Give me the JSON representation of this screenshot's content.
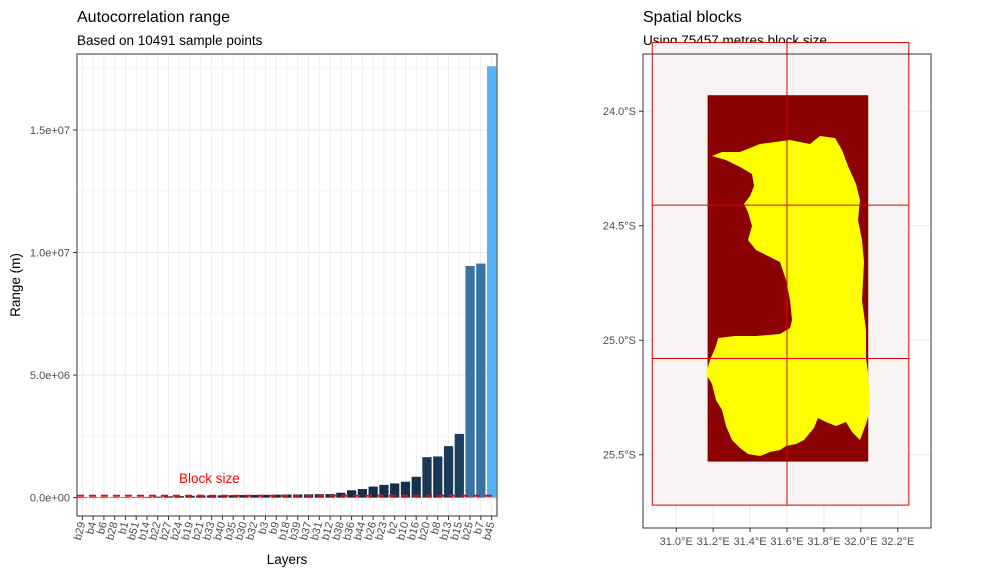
{
  "chart_data": [
    {
      "type": "bar",
      "title": "Autocorrelation range",
      "subtitle": "Based on 10491 sample points",
      "xlabel": "Layers",
      "ylabel": "Range (m)",
      "ylim": [
        -750000,
        18100000
      ],
      "yticks": [
        0,
        5000000,
        10000000,
        15000000
      ],
      "ytick_labels": [
        "0.0e+00",
        "5.0e+06",
        "1.0e+07",
        "1.5e+07"
      ],
      "grid": true,
      "categories": [
        "b29",
        "b4",
        "b6",
        "b28",
        "b1",
        "b51",
        "b14",
        "b22",
        "b27",
        "b24",
        "b19",
        "b21",
        "b33",
        "b40",
        "b35",
        "b30",
        "b32",
        "b3",
        "b9",
        "b18",
        "b39",
        "b37",
        "b31",
        "b12",
        "b38",
        "b36",
        "b44",
        "b26",
        "b23",
        "b2",
        "b10",
        "b16",
        "b20",
        "b8",
        "b13",
        "b15",
        "b25",
        "b7",
        "b45"
      ],
      "values": [
        5000,
        8000,
        10000,
        12000,
        15000,
        20000,
        30000,
        40000,
        50000,
        60000,
        75000,
        85000,
        90000,
        95000,
        100000,
        105000,
        110000,
        115000,
        120000,
        125000,
        130000,
        135000,
        140000,
        145000,
        200000,
        300000,
        350000,
        450000,
        520000,
        580000,
        650000,
        850000,
        1650000,
        1680000,
        2100000,
        2600000,
        9450000,
        9550000,
        17600000
      ],
      "value_scale_colors": [
        "#132B43",
        "#56B1F7"
      ],
      "reference_line": {
        "value": 75457,
        "label": "Block size",
        "color": "#ff0000",
        "style": "dashed"
      }
    },
    {
      "type": "map",
      "title": "Spatial blocks",
      "subtitle": "Using 75457 metres block size",
      "x_range": [
        30.82,
        32.38
      ],
      "y_range": [
        -25.82,
        -23.75
      ],
      "xticks": [
        31.0,
        31.2,
        31.4,
        31.6,
        31.8,
        32.0,
        32.2
      ],
      "xtick_labels": [
        "31.0°E",
        "31.2°E",
        "31.4°E",
        "31.6°E",
        "31.8°E",
        "32.0°E",
        "32.2°E"
      ],
      "yticks": [
        -24.0,
        -24.5,
        -25.0,
        -25.5
      ],
      "ytick_labels": [
        "24.0°S",
        "24.5°S",
        "25.0°S",
        "25.5°S"
      ],
      "raster_extent": {
        "xmin": 31.17,
        "xmax": 32.04,
        "ymin": -25.53,
        "ymax": -23.93
      },
      "blocks_extent": {
        "xmin": 30.87,
        "xmax": 32.26,
        "ymin": -25.72,
        "ymax": -23.7
      },
      "block_breaks_x": [
        31.6
      ],
      "block_breaks_y": [
        -24.41,
        -25.08
      ],
      "colors": {
        "raster_background": "#8b0000",
        "raster_fill": "#ffff00",
        "blocks": "#dd0000",
        "panel": "#f8f4f4"
      }
    }
  ]
}
